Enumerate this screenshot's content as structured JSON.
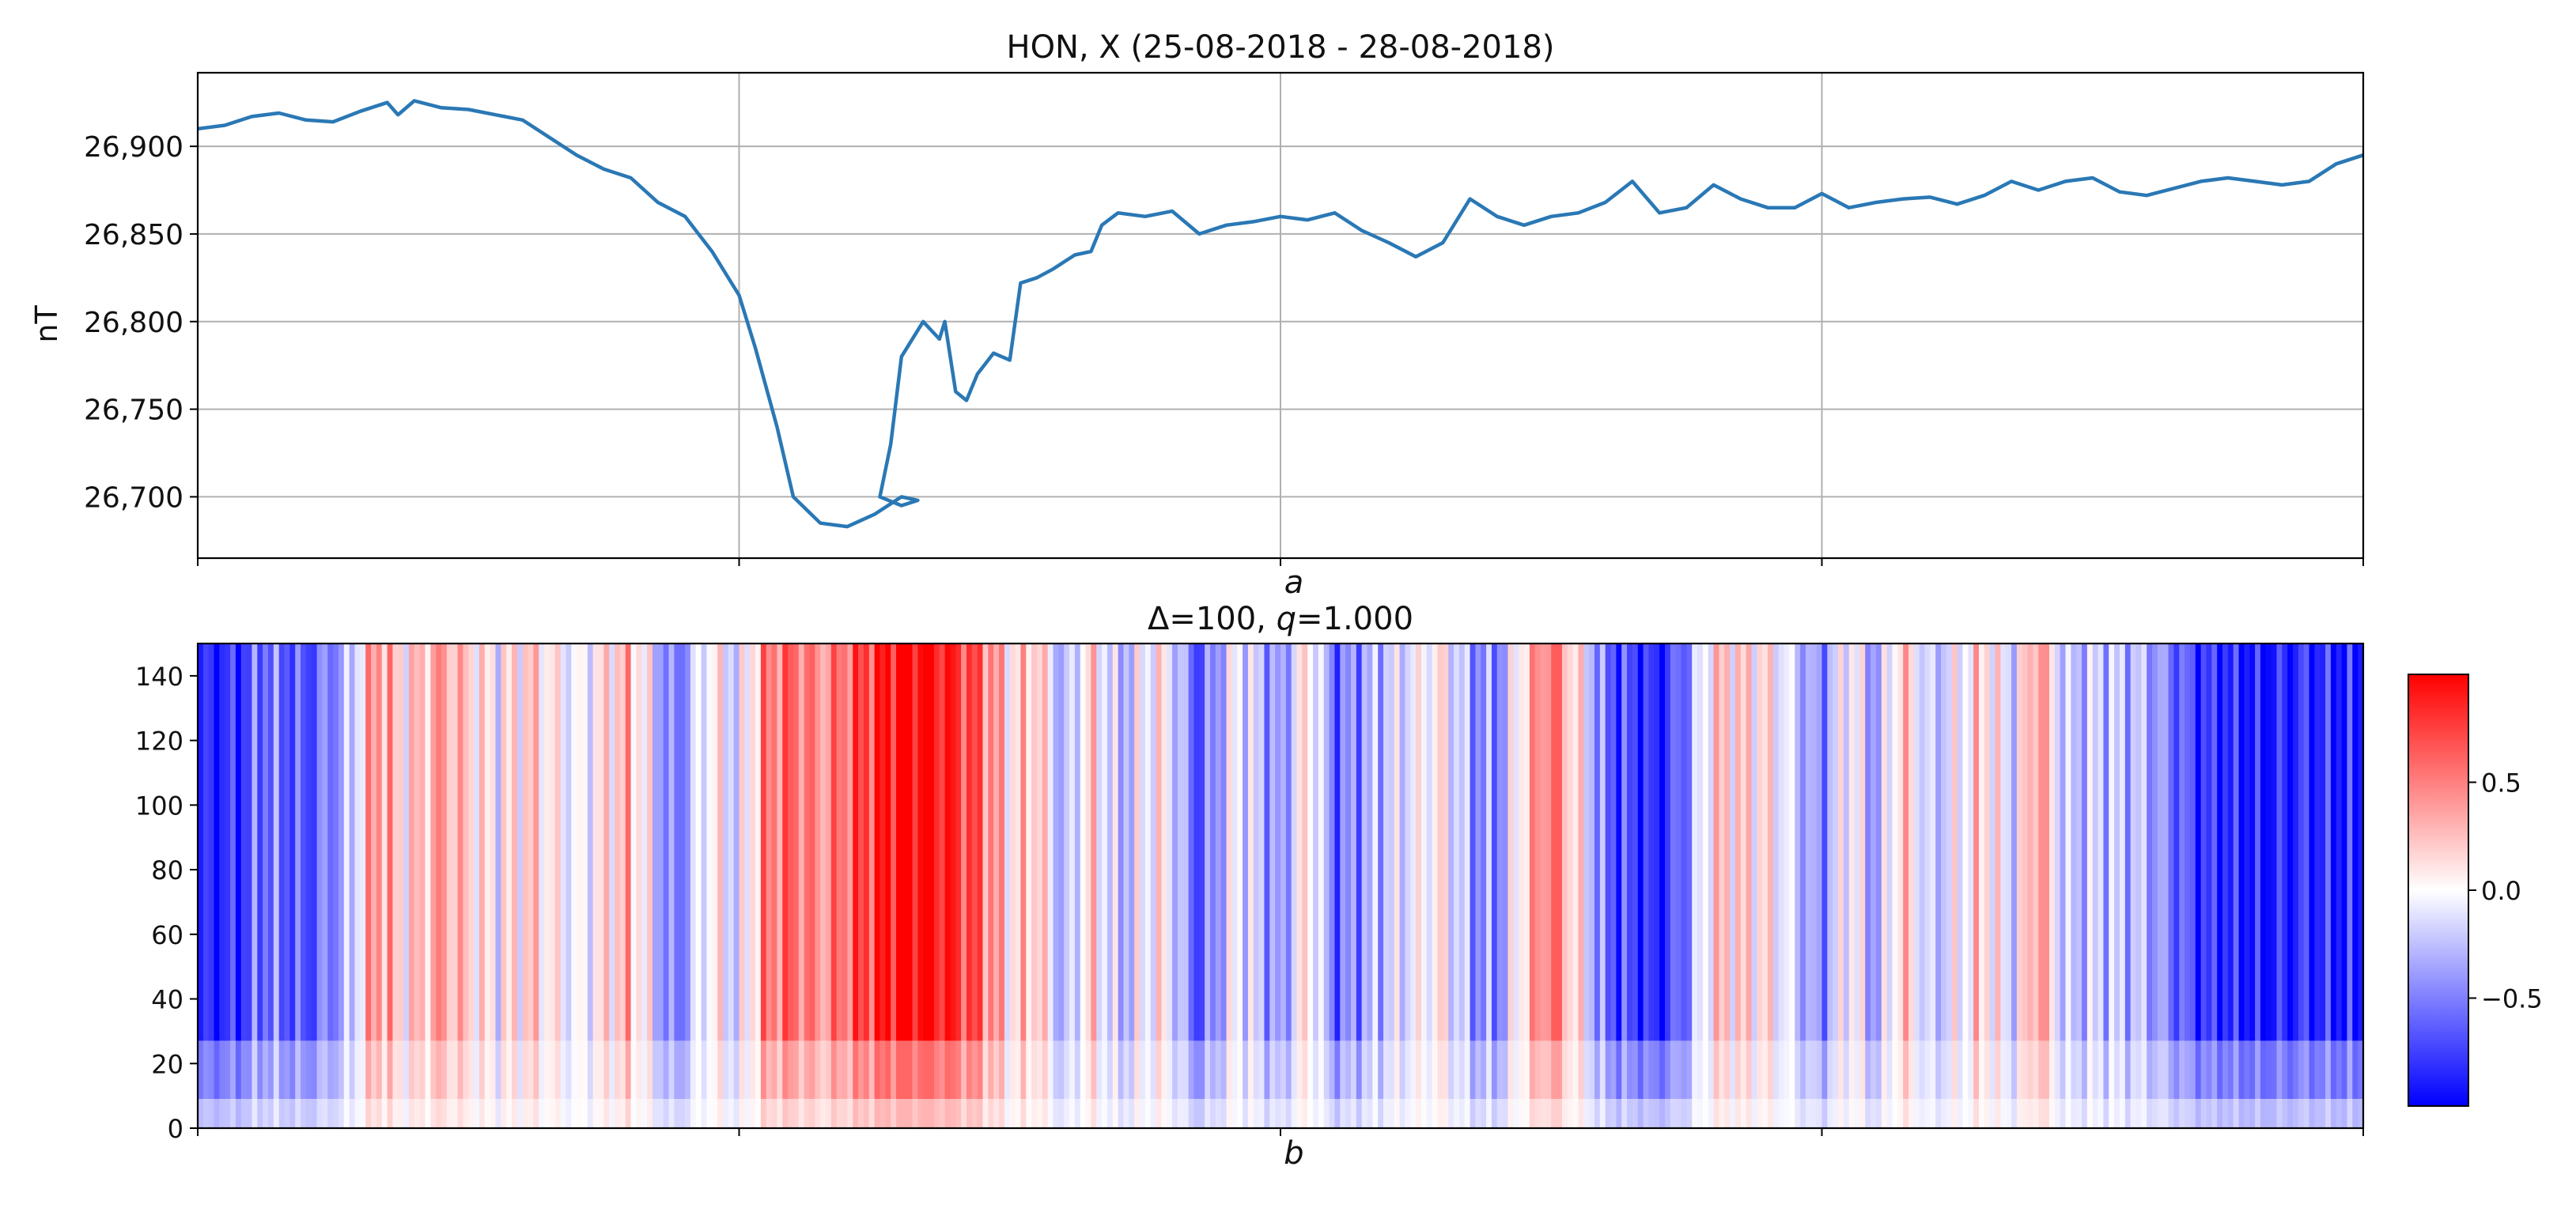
{
  "figure": {
    "panel_a_title": "HON, X  (25-08-2018 - 28-08-2018)",
    "panel_a_ylabel": "nT",
    "panel_a_caption": "a",
    "panel_b_title_prefix": "Δ=100, ",
    "panel_b_title_q": "q",
    "panel_b_title_suffix": "=1.000",
    "panel_b_caption": "b"
  },
  "colors": {
    "line": "#2a78b5",
    "grid": "#b0b0b0",
    "cmap_low": "#0000ff",
    "cmap_mid": "#ffffff",
    "cmap_high": "#ff0000"
  },
  "chart_data": [
    {
      "type": "line",
      "title": "HON, X  (25-08-2018 - 28-08-2018)",
      "xlabel": "a",
      "ylabel": "nT",
      "xlim": [
        0,
        4
      ],
      "ylim": [
        26665,
        26942
      ],
      "yticks": [
        26700,
        26750,
        26800,
        26850,
        26900
      ],
      "ytick_labels": [
        "26,700",
        "26,750",
        "26,800",
        "26,850",
        "26,900"
      ],
      "xticks": [
        0,
        1,
        2,
        3,
        4
      ],
      "grid": true,
      "series": [
        {
          "name": "X",
          "x": [
            0,
            0.05,
            0.1,
            0.15,
            0.2,
            0.25,
            0.3,
            0.35,
            0.37,
            0.4,
            0.45,
            0.5,
            0.55,
            0.6,
            0.65,
            0.7,
            0.75,
            0.8,
            0.85,
            0.9,
            0.95,
            1.0,
            1.03,
            1.07,
            1.1,
            1.15,
            1.2,
            1.25,
            1.3,
            1.33,
            1.3,
            1.26,
            1.28,
            1.3,
            1.34,
            1.37,
            1.38,
            1.4,
            1.42,
            1.44,
            1.47,
            1.5,
            1.52,
            1.55,
            1.58,
            1.62,
            1.65,
            1.67,
            1.7,
            1.75,
            1.8,
            1.85,
            1.9,
            1.95,
            2.0,
            2.05,
            2.1,
            2.15,
            2.2,
            2.25,
            2.3,
            2.35,
            2.4,
            2.45,
            2.5,
            2.55,
            2.6,
            2.65,
            2.7,
            2.75,
            2.8,
            2.85,
            2.9,
            2.95,
            3.0,
            3.05,
            3.1,
            3.15,
            3.2,
            3.25,
            3.3,
            3.35,
            3.4,
            3.45,
            3.5,
            3.55,
            3.6,
            3.65,
            3.7,
            3.75,
            3.8,
            3.85,
            3.9,
            3.95,
            4.0
          ],
          "values": [
            26910,
            26912,
            26917,
            26919,
            26915,
            26914,
            26920,
            26925,
            26918,
            26926,
            26922,
            26921,
            26918,
            26915,
            26905,
            26895,
            26887,
            26882,
            26868,
            26860,
            26840,
            26815,
            26785,
            26740,
            26700,
            26685,
            26683,
            26690,
            26700,
            26698,
            26695,
            26700,
            26730,
            26780,
            26800,
            26790,
            26800,
            26760,
            26755,
            26770,
            26782,
            26778,
            26822,
            26825,
            26830,
            26838,
            26840,
            26855,
            26862,
            26860,
            26863,
            26850,
            26855,
            26857,
            26860,
            26858,
            26862,
            26852,
            26845,
            26837,
            26845,
            26870,
            26860,
            26855,
            26860,
            26862,
            26868,
            26880,
            26862,
            26865,
            26878,
            26870,
            26865,
            26865,
            26873,
            26865,
            26868,
            26870,
            26871,
            26867,
            26872,
            26880,
            26875,
            26880,
            26882,
            26874,
            26872,
            26876,
            26880,
            26882,
            26880,
            26878,
            26880,
            26890,
            26895
          ]
        }
      ]
    },
    {
      "type": "heatmap",
      "title": "Δ=100, q=1.000",
      "xlabel": "b",
      "ylabel": "",
      "xlim": [
        0,
        4
      ],
      "ylim": [
        0,
        150
      ],
      "yticks": [
        0,
        20,
        40,
        60,
        80,
        100,
        120,
        140
      ],
      "ytick_labels": [
        "0",
        "20",
        "40",
        "60",
        "80",
        "100",
        "120",
        "140"
      ],
      "xticks": [
        0,
        1,
        2,
        3,
        4
      ],
      "colormap": "bwr",
      "vmin": -1,
      "vmax": 1,
      "colorbar_ticks": [
        0.5,
        0.0,
        -0.5
      ],
      "colorbar_tick_labels": [
        "0.5",
        "0.0",
        "−0.5"
      ],
      "band_profile": {
        "x": [
          0.0,
          0.08,
          0.12,
          0.2,
          0.28,
          0.33,
          0.38,
          0.45,
          0.55,
          0.62,
          0.7,
          0.8,
          0.88,
          0.95,
          1.0,
          1.05,
          1.1,
          1.15,
          1.2,
          1.25,
          1.28,
          1.32,
          1.36,
          1.4,
          1.45,
          1.5,
          1.55,
          1.6,
          1.65,
          1.7,
          1.78,
          1.85,
          1.92,
          2.0,
          2.05,
          2.1,
          2.2,
          2.3,
          2.35,
          2.4,
          2.45,
          2.5,
          2.55,
          2.6,
          2.7,
          2.75,
          2.8,
          2.9,
          3.0,
          3.05,
          3.1,
          3.15,
          3.2,
          3.3,
          3.35,
          3.4,
          3.45,
          3.5,
          3.6,
          3.7,
          3.8,
          3.9,
          4.0
        ],
        "value": [
          -0.9,
          -0.8,
          -0.5,
          -0.7,
          -0.3,
          0.5,
          0.1,
          0.4,
          0.0,
          0.2,
          -0.1,
          0.3,
          -0.6,
          0.1,
          -0.2,
          0.5,
          0.6,
          0.4,
          0.6,
          0.8,
          0.95,
          1.0,
          0.95,
          0.8,
          0.6,
          0.1,
          0.3,
          -0.4,
          0.2,
          -0.3,
          0.1,
          -0.7,
          0.0,
          -0.5,
          0.2,
          -0.6,
          -0.2,
          0.1,
          -0.4,
          -0.5,
          0.2,
          0.6,
          0.1,
          -0.6,
          -0.9,
          -0.5,
          0.2,
          0.1,
          -0.5,
          0.1,
          -0.4,
          0.3,
          -0.3,
          0.2,
          -0.2,
          0.5,
          -0.3,
          -0.2,
          -0.3,
          -0.8,
          -0.9,
          -0.8,
          -0.9
        ]
      }
    }
  ]
}
